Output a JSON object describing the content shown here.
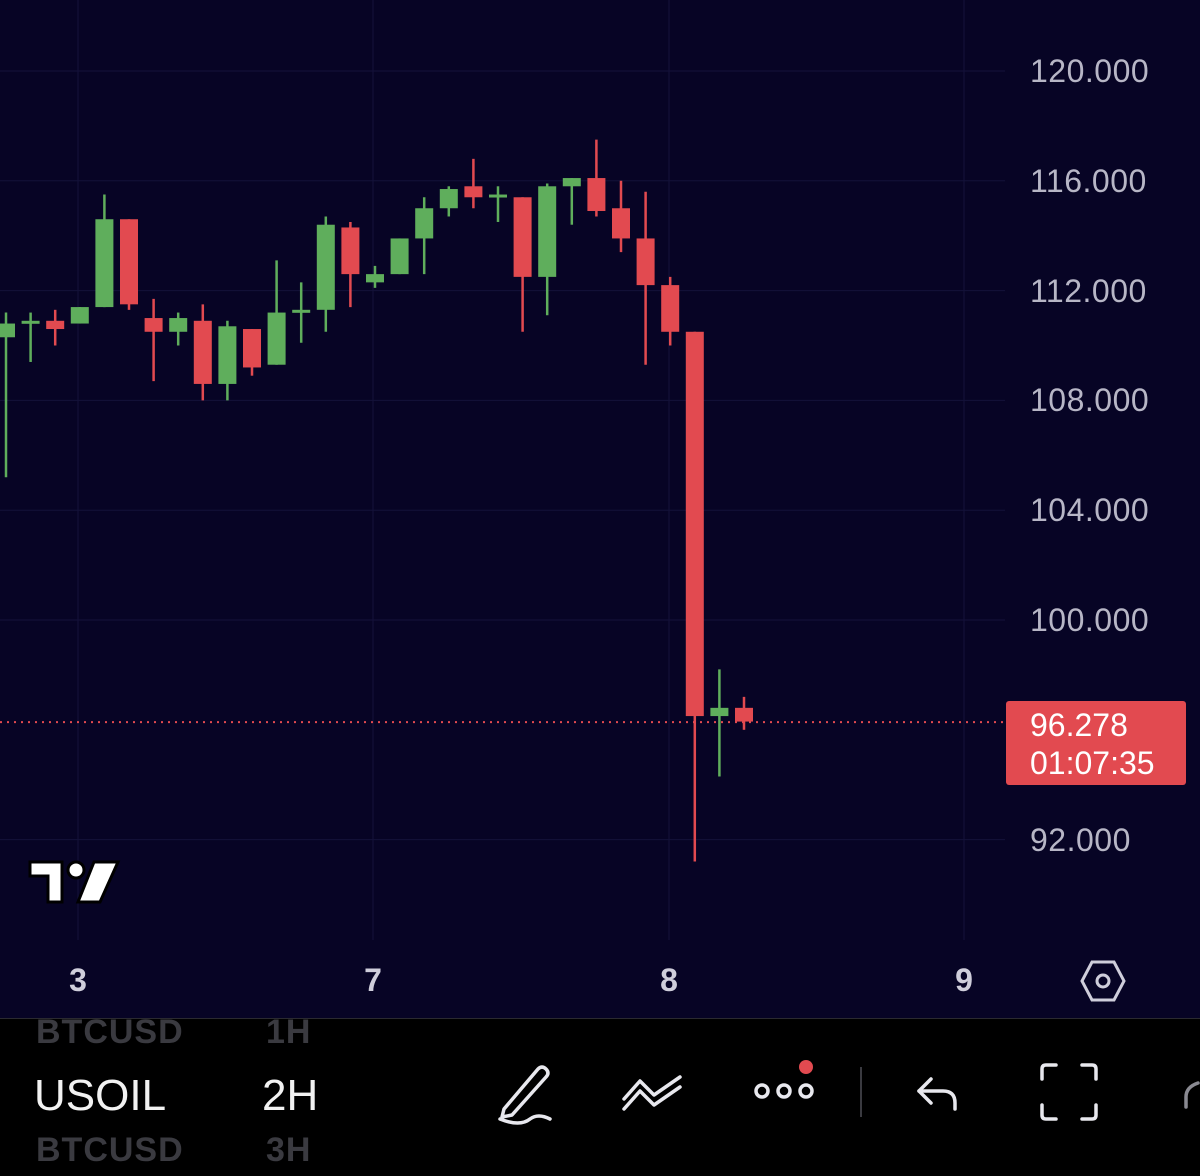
{
  "chart_data": {
    "type": "candlestick",
    "symbol": "USOIL",
    "interval": "2H",
    "yticks": [
      120,
      116,
      112,
      108,
      104,
      100,
      92
    ],
    "ytick_labels": [
      "120.000",
      "116.000",
      "112.000",
      "108.000",
      "104.000",
      "100.000",
      "92.000"
    ],
    "ylim": [
      88.5,
      122
    ],
    "xtick_labels": [
      "3",
      "7",
      "8",
      "9"
    ],
    "last_price": 96.278,
    "last_price_label": "96.278",
    "countdown": "01:07:35",
    "colors": {
      "up": "#5fae5c",
      "down": "#e24a50",
      "background": "#070425",
      "grid": "#14123a"
    },
    "candles": [
      {
        "o": 110.3,
        "h": 111.2,
        "l": 105.2,
        "c": 110.8
      },
      {
        "o": 110.8,
        "h": 111.2,
        "l": 109.4,
        "c": 110.9
      },
      {
        "o": 110.9,
        "h": 111.3,
        "l": 110.0,
        "c": 110.6
      },
      {
        "o": 110.8,
        "h": 111.4,
        "l": 110.8,
        "c": 111.4
      },
      {
        "o": 111.4,
        "h": 115.5,
        "l": 111.4,
        "c": 114.6
      },
      {
        "o": 114.6,
        "h": 114.6,
        "l": 111.3,
        "c": 111.5
      },
      {
        "o": 111.0,
        "h": 111.7,
        "l": 108.7,
        "c": 110.5
      },
      {
        "o": 110.5,
        "h": 111.2,
        "l": 110.0,
        "c": 111.0
      },
      {
        "o": 110.9,
        "h": 111.5,
        "l": 108.0,
        "c": 108.6
      },
      {
        "o": 108.6,
        "h": 110.9,
        "l": 108.0,
        "c": 110.7
      },
      {
        "o": 110.6,
        "h": 110.6,
        "l": 108.9,
        "c": 109.2
      },
      {
        "o": 109.3,
        "h": 113.1,
        "l": 109.3,
        "c": 111.2
      },
      {
        "o": 111.2,
        "h": 112.3,
        "l": 110.1,
        "c": 111.3
      },
      {
        "o": 111.3,
        "h": 114.7,
        "l": 110.5,
        "c": 114.4
      },
      {
        "o": 114.3,
        "h": 114.5,
        "l": 111.4,
        "c": 112.6
      },
      {
        "o": 112.3,
        "h": 112.9,
        "l": 112.1,
        "c": 112.6
      },
      {
        "o": 112.6,
        "h": 113.9,
        "l": 112.6,
        "c": 113.9
      },
      {
        "o": 113.9,
        "h": 115.4,
        "l": 112.6,
        "c": 115.0
      },
      {
        "o": 115.0,
        "h": 115.8,
        "l": 114.7,
        "c": 115.7
      },
      {
        "o": 115.8,
        "h": 116.8,
        "l": 115.0,
        "c": 115.4
      },
      {
        "o": 115.5,
        "h": 115.8,
        "l": 114.5,
        "c": 115.5
      },
      {
        "o": 115.4,
        "h": 115.4,
        "l": 110.5,
        "c": 112.5
      },
      {
        "o": 112.5,
        "h": 115.9,
        "l": 111.1,
        "c": 115.8
      },
      {
        "o": 115.8,
        "h": 116.1,
        "l": 114.4,
        "c": 116.1
      },
      {
        "o": 116.1,
        "h": 117.5,
        "l": 114.7,
        "c": 114.9
      },
      {
        "o": 115.0,
        "h": 116.0,
        "l": 113.4,
        "c": 113.9
      },
      {
        "o": 113.9,
        "h": 115.6,
        "l": 109.3,
        "c": 112.2
      },
      {
        "o": 112.2,
        "h": 112.5,
        "l": 110.0,
        "c": 110.5
      },
      {
        "o": 110.5,
        "h": 110.5,
        "l": 91.2,
        "c": 96.5
      },
      {
        "o": 96.5,
        "h": 98.2,
        "l": 94.3,
        "c": 96.8
      },
      {
        "o": 96.8,
        "h": 97.2,
        "l": 96.0,
        "c": 96.3
      }
    ]
  },
  "toolbar": {
    "symbol": "USOIL",
    "interval": "2H",
    "ghost_symbol_above": "BTCUSD",
    "ghost_interval_above": "1H",
    "ghost_symbol_below": "BTCUSD",
    "ghost_interval_below": "3H",
    "icons": [
      "draw-icon",
      "indicators-icon",
      "more-icon",
      "undo-icon",
      "fullscreen-icon"
    ]
  }
}
